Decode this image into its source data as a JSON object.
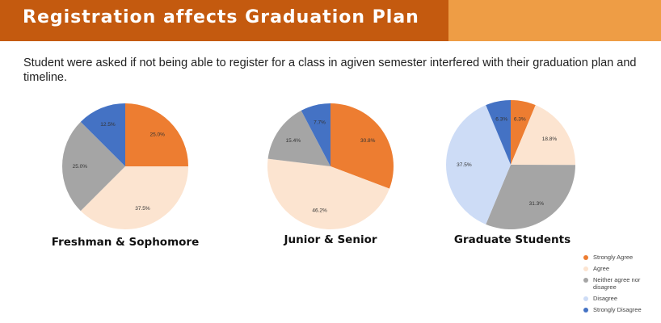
{
  "header": {
    "title": "Registration affects Graduation Plan",
    "colors": {
      "dark": "#c45a0f",
      "light": "#ee9d45"
    }
  },
  "subtitle": "Student were asked if not being able to register for a class in agiven semester interfered with their graduation plan and timeline.",
  "legend": {
    "items": [
      {
        "label": "Strongly Agree",
        "color": "#ed7d31"
      },
      {
        "label": "Agree",
        "color": "#fce4d0"
      },
      {
        "label": "Neither agree nor disagree",
        "color": "#a5a5a5"
      },
      {
        "label": "Disagree",
        "color": "#cddcf6"
      },
      {
        "label": "Strongly Disagree",
        "color": "#4472c4"
      }
    ]
  },
  "chart_data": [
    {
      "type": "pie",
      "title": "Freshman & Sophomore",
      "categories": [
        "Strongly Agree",
        "Agree",
        "Neither agree nor disagree",
        "Strongly Disagree"
      ],
      "values": [
        25.0,
        37.5,
        25.0,
        12.5
      ],
      "labels": [
        "25.0%",
        "37.5%",
        "25.0%",
        "12.5%"
      ],
      "colors": [
        "#ed7d31",
        "#fce4d0",
        "#a5a5a5",
        "#4472c4"
      ]
    },
    {
      "type": "pie",
      "title": "Junior & Senior",
      "categories": [
        "Strongly Agree",
        "Agree",
        "Neither agree nor disagree",
        "Strongly Disagree"
      ],
      "values": [
        30.8,
        46.2,
        15.4,
        7.7
      ],
      "labels": [
        "30.8%",
        "46.2%",
        "15.4%",
        "7.7%"
      ],
      "colors": [
        "#ed7d31",
        "#fce4d0",
        "#a5a5a5",
        "#4472c4"
      ]
    },
    {
      "type": "pie",
      "title": "Graduate Students",
      "categories": [
        "Strongly Agree",
        "Agree",
        "Neither agree nor disagree",
        "Disagree",
        "Strongly Disagree"
      ],
      "values": [
        6.3,
        18.8,
        31.3,
        37.5,
        6.3
      ],
      "labels": [
        "6.3%",
        "18.8%",
        "31.3%",
        "37.5%",
        "6.3%"
      ],
      "colors": [
        "#ed7d31",
        "#fce4d0",
        "#a5a5a5",
        "#cddcf6",
        "#4472c4"
      ]
    }
  ]
}
